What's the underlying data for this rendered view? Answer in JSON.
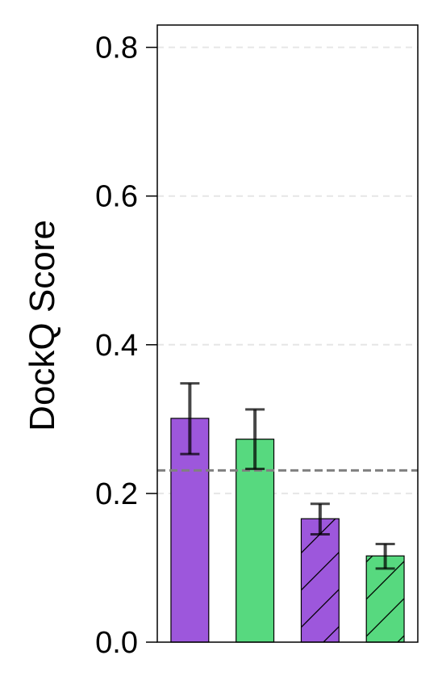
{
  "chart_data": {
    "type": "bar",
    "title": "",
    "xlabel": "",
    "ylabel": "DockQ Score",
    "ylim": [
      0,
      0.83
    ],
    "yticks": [
      0.0,
      0.2,
      0.4,
      0.6,
      0.8
    ],
    "ytick_labels": [
      "0.0",
      "0.2",
      "0.4",
      "0.6",
      "0.8"
    ],
    "grid": "horizontal dashed",
    "reference_line": {
      "y": 0.231,
      "style": "dashed",
      "color": "#808080"
    },
    "bars": [
      {
        "value": 0.301,
        "error_low": 0.253,
        "error_high": 0.348,
        "color": "#9d57dc",
        "hatch": false
      },
      {
        "value": 0.273,
        "error_low": 0.233,
        "error_high": 0.313,
        "color": "#57d97f",
        "hatch": false
      },
      {
        "value": 0.166,
        "error_low": 0.145,
        "error_high": 0.186,
        "color": "#9d57dc",
        "hatch": true
      },
      {
        "value": 0.116,
        "error_low": 0.099,
        "error_high": 0.132,
        "color": "#57d97f",
        "hatch": true
      }
    ]
  }
}
